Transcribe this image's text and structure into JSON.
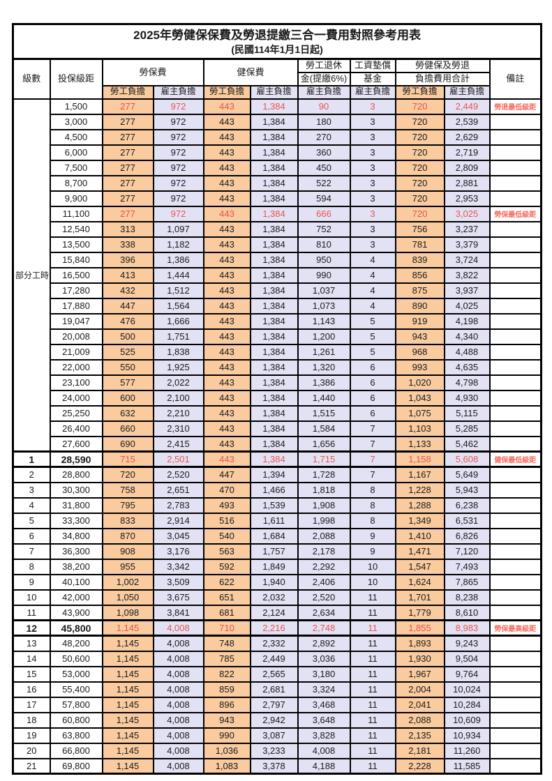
{
  "title": "2025年勞健保保費及勞退提繳三合一費用對照參考用表",
  "subtitle": "(民國114年1月1日起)",
  "columns": {
    "level": "級數",
    "bracket": "投保級距",
    "labor_insurance": "勞保費",
    "health_insurance": "健保費",
    "pension_line1": "勞工退休",
    "pension_line2": "金(提繳6%)",
    "wage_fund_line1": "工資墊償",
    "wage_fund_line2": "基金",
    "total_line1": "勞健保及勞退",
    "total_line2": "負擔費用合計",
    "remark": "備註",
    "employee": "勞工負擔",
    "employer": "雇主負擔"
  },
  "part_time": {
    "label": "部分工時",
    "span": 23
  },
  "colors": {
    "employee_bg": "#F9CB9F",
    "employer_bg": "#E3E2F4",
    "highlight_red": "#E8544C",
    "remark_red": "#F96A60",
    "border": "#000000"
  },
  "rows": [
    {
      "level": null,
      "salary": "1,500",
      "values": [
        "277",
        "972",
        "443",
        "1,384",
        "90",
        "3",
        "720",
        "2,449"
      ],
      "remark": "勞退最低級距",
      "red": true,
      "bold": false,
      "heavy": false
    },
    {
      "level": null,
      "salary": "3,000",
      "values": [
        "277",
        "972",
        "443",
        "1,384",
        "180",
        "3",
        "720",
        "2,539"
      ],
      "remark": "",
      "red": false,
      "bold": false,
      "heavy": false
    },
    {
      "level": null,
      "salary": "4,500",
      "values": [
        "277",
        "972",
        "443",
        "1,384",
        "270",
        "3",
        "720",
        "2,629"
      ],
      "remark": "",
      "red": false,
      "bold": false,
      "heavy": false
    },
    {
      "level": null,
      "salary": "6,000",
      "values": [
        "277",
        "972",
        "443",
        "1,384",
        "360",
        "3",
        "720",
        "2,719"
      ],
      "remark": "",
      "red": false,
      "bold": false,
      "heavy": false
    },
    {
      "level": null,
      "salary": "7,500",
      "values": [
        "277",
        "972",
        "443",
        "1,384",
        "450",
        "3",
        "720",
        "2,809"
      ],
      "remark": "",
      "red": false,
      "bold": false,
      "heavy": false
    },
    {
      "level": null,
      "salary": "8,700",
      "values": [
        "277",
        "972",
        "443",
        "1,384",
        "522",
        "3",
        "720",
        "2,881"
      ],
      "remark": "",
      "red": false,
      "bold": false,
      "heavy": false
    },
    {
      "level": null,
      "salary": "9,900",
      "values": [
        "277",
        "972",
        "443",
        "1,384",
        "594",
        "3",
        "720",
        "2,953"
      ],
      "remark": "",
      "red": false,
      "bold": false,
      "heavy": false
    },
    {
      "level": null,
      "salary": "11,100",
      "values": [
        "277",
        "972",
        "443",
        "1,384",
        "666",
        "3",
        "720",
        "3,025"
      ],
      "remark": "勞保最低級距",
      "red": true,
      "bold": false,
      "heavy": false
    },
    {
      "level": null,
      "salary": "12,540",
      "values": [
        "313",
        "1,097",
        "443",
        "1,384",
        "752",
        "3",
        "756",
        "3,237"
      ],
      "remark": "",
      "red": false,
      "bold": false,
      "heavy": false
    },
    {
      "level": null,
      "salary": "13,500",
      "values": [
        "338",
        "1,182",
        "443",
        "1,384",
        "810",
        "3",
        "781",
        "3,379"
      ],
      "remark": "",
      "red": false,
      "bold": false,
      "heavy": false
    },
    {
      "level": null,
      "salary": "15,840",
      "values": [
        "396",
        "1,386",
        "443",
        "1,384",
        "950",
        "4",
        "839",
        "3,724"
      ],
      "remark": "",
      "red": false,
      "bold": false,
      "heavy": false
    },
    {
      "level": null,
      "salary": "16,500",
      "values": [
        "413",
        "1,444",
        "443",
        "1,384",
        "990",
        "4",
        "856",
        "3,822"
      ],
      "remark": "",
      "red": false,
      "bold": false,
      "heavy": false
    },
    {
      "level": null,
      "salary": "17,280",
      "values": [
        "432",
        "1,512",
        "443",
        "1,384",
        "1,037",
        "4",
        "875",
        "3,937"
      ],
      "remark": "",
      "red": false,
      "bold": false,
      "heavy": false
    },
    {
      "level": null,
      "salary": "17,880",
      "values": [
        "447",
        "1,564",
        "443",
        "1,384",
        "1,073",
        "4",
        "890",
        "4,025"
      ],
      "remark": "",
      "red": false,
      "bold": false,
      "heavy": false
    },
    {
      "level": null,
      "salary": "19,047",
      "values": [
        "476",
        "1,666",
        "443",
        "1,384",
        "1,143",
        "5",
        "919",
        "4,198"
      ],
      "remark": "",
      "red": false,
      "bold": false,
      "heavy": false
    },
    {
      "level": null,
      "salary": "20,008",
      "values": [
        "500",
        "1,751",
        "443",
        "1,384",
        "1,200",
        "5",
        "943",
        "4,340"
      ],
      "remark": "",
      "red": false,
      "bold": false,
      "heavy": false
    },
    {
      "level": null,
      "salary": "21,009",
      "values": [
        "525",
        "1,838",
        "443",
        "1,384",
        "1,261",
        "5",
        "968",
        "4,488"
      ],
      "remark": "",
      "red": false,
      "bold": false,
      "heavy": false
    },
    {
      "level": null,
      "salary": "22,000",
      "values": [
        "550",
        "1,925",
        "443",
        "1,384",
        "1,320",
        "6",
        "993",
        "4,635"
      ],
      "remark": "",
      "red": false,
      "bold": false,
      "heavy": false
    },
    {
      "level": null,
      "salary": "23,100",
      "values": [
        "577",
        "2,022",
        "443",
        "1,384",
        "1,386",
        "6",
        "1,020",
        "4,798"
      ],
      "remark": "",
      "red": false,
      "bold": false,
      "heavy": false
    },
    {
      "level": null,
      "salary": "24,000",
      "values": [
        "600",
        "2,100",
        "443",
        "1,384",
        "1,440",
        "6",
        "1,043",
        "4,930"
      ],
      "remark": "",
      "red": false,
      "bold": false,
      "heavy": false
    },
    {
      "level": null,
      "salary": "25,250",
      "values": [
        "632",
        "2,210",
        "443",
        "1,384",
        "1,515",
        "6",
        "1,075",
        "5,115"
      ],
      "remark": "",
      "red": false,
      "bold": false,
      "heavy": false
    },
    {
      "level": null,
      "salary": "26,400",
      "values": [
        "660",
        "2,310",
        "443",
        "1,384",
        "1,584",
        "7",
        "1,103",
        "5,285"
      ],
      "remark": "",
      "red": false,
      "bold": false,
      "heavy": false
    },
    {
      "level": null,
      "salary": "27,600",
      "values": [
        "690",
        "2,415",
        "443",
        "1,384",
        "1,656",
        "7",
        "1,133",
        "5,462"
      ],
      "remark": "",
      "red": false,
      "bold": false,
      "heavy": false
    },
    {
      "level": "1",
      "salary": "28,590",
      "values": [
        "715",
        "2,501",
        "443",
        "1,384",
        "1,715",
        "7",
        "1,158",
        "5,608"
      ],
      "remark": "健保最低級距",
      "red": true,
      "bold": true,
      "heavy": true
    },
    {
      "level": "2",
      "salary": "28,800",
      "values": [
        "720",
        "2,520",
        "447",
        "1,394",
        "1,728",
        "7",
        "1,167",
        "5,649"
      ],
      "remark": "",
      "red": false,
      "bold": false,
      "heavy": false
    },
    {
      "level": "3",
      "salary": "30,300",
      "values": [
        "758",
        "2,651",
        "470",
        "1,466",
        "1,818",
        "8",
        "1,228",
        "5,943"
      ],
      "remark": "",
      "red": false,
      "bold": false,
      "heavy": false
    },
    {
      "level": "4",
      "salary": "31,800",
      "values": [
        "795",
        "2,783",
        "493",
        "1,539",
        "1,908",
        "8",
        "1,288",
        "6,238"
      ],
      "remark": "",
      "red": false,
      "bold": false,
      "heavy": false
    },
    {
      "level": "5",
      "salary": "33,300",
      "values": [
        "833",
        "2,914",
        "516",
        "1,611",
        "1,998",
        "8",
        "1,349",
        "6,531"
      ],
      "remark": "",
      "red": false,
      "bold": false,
      "heavy": false
    },
    {
      "level": "6",
      "salary": "34,800",
      "values": [
        "870",
        "3,045",
        "540",
        "1,684",
        "2,088",
        "9",
        "1,410",
        "6,826"
      ],
      "remark": "",
      "red": false,
      "bold": false,
      "heavy": false
    },
    {
      "level": "7",
      "salary": "36,300",
      "values": [
        "908",
        "3,176",
        "563",
        "1,757",
        "2,178",
        "9",
        "1,471",
        "7,120"
      ],
      "remark": "",
      "red": false,
      "bold": false,
      "heavy": false
    },
    {
      "level": "8",
      "salary": "38,200",
      "values": [
        "955",
        "3,342",
        "592",
        "1,849",
        "2,292",
        "10",
        "1,547",
        "7,493"
      ],
      "remark": "",
      "red": false,
      "bold": false,
      "heavy": false
    },
    {
      "level": "9",
      "salary": "40,100",
      "values": [
        "1,002",
        "3,509",
        "622",
        "1,940",
        "2,406",
        "10",
        "1,624",
        "7,865"
      ],
      "remark": "",
      "red": false,
      "bold": false,
      "heavy": false
    },
    {
      "level": "10",
      "salary": "42,000",
      "values": [
        "1,050",
        "3,675",
        "651",
        "2,032",
        "2,520",
        "11",
        "1,701",
        "8,238"
      ],
      "remark": "",
      "red": false,
      "bold": false,
      "heavy": false
    },
    {
      "level": "11",
      "salary": "43,900",
      "values": [
        "1,098",
        "3,841",
        "681",
        "2,124",
        "2,634",
        "11",
        "1,779",
        "8,610"
      ],
      "remark": "",
      "red": false,
      "bold": false,
      "heavy": false
    },
    {
      "level": "12",
      "salary": "45,800",
      "values": [
        "1,145",
        "4,008",
        "710",
        "2,216",
        "2,748",
        "11",
        "1,855",
        "8,983"
      ],
      "remark": "勞保最高級距",
      "red": true,
      "bold": true,
      "heavy": true
    },
    {
      "level": "13",
      "salary": "48,200",
      "values": [
        "1,145",
        "4,008",
        "748",
        "2,332",
        "2,892",
        "11",
        "1,893",
        "9,243"
      ],
      "remark": "",
      "red": false,
      "bold": false,
      "heavy": false
    },
    {
      "level": "14",
      "salary": "50,600",
      "values": [
        "1,145",
        "4,008",
        "785",
        "2,449",
        "3,036",
        "11",
        "1,930",
        "9,504"
      ],
      "remark": "",
      "red": false,
      "bold": false,
      "heavy": false
    },
    {
      "level": "15",
      "salary": "53,000",
      "values": [
        "1,145",
        "4,008",
        "822",
        "2,565",
        "3,180",
        "11",
        "1,967",
        "9,764"
      ],
      "remark": "",
      "red": false,
      "bold": false,
      "heavy": false
    },
    {
      "level": "16",
      "salary": "55,400",
      "values": [
        "1,145",
        "4,008",
        "859",
        "2,681",
        "3,324",
        "11",
        "2,004",
        "10,024"
      ],
      "remark": "",
      "red": false,
      "bold": false,
      "heavy": false
    },
    {
      "level": "17",
      "salary": "57,800",
      "values": [
        "1,145",
        "4,008",
        "896",
        "2,797",
        "3,468",
        "11",
        "2,041",
        "10,284"
      ],
      "remark": "",
      "red": false,
      "bold": false,
      "heavy": false
    },
    {
      "level": "18",
      "salary": "60,800",
      "values": [
        "1,145",
        "4,008",
        "943",
        "2,942",
        "3,648",
        "11",
        "2,088",
        "10,609"
      ],
      "remark": "",
      "red": false,
      "bold": false,
      "heavy": false
    },
    {
      "level": "19",
      "salary": "63,800",
      "values": [
        "1,145",
        "4,008",
        "990",
        "3,087",
        "3,828",
        "11",
        "2,135",
        "10,934"
      ],
      "remark": "",
      "red": false,
      "bold": false,
      "heavy": false
    },
    {
      "level": "20",
      "salary": "66,800",
      "values": [
        "1,145",
        "4,008",
        "1,036",
        "3,233",
        "4,008",
        "11",
        "2,181",
        "11,260"
      ],
      "remark": "",
      "red": false,
      "bold": false,
      "heavy": false
    },
    {
      "level": "21",
      "salary": "69,800",
      "values": [
        "1,145",
        "4,008",
        "1,083",
        "3,378",
        "4,188",
        "11",
        "2,228",
        "11,585"
      ],
      "remark": "",
      "red": false,
      "bold": false,
      "heavy": false
    }
  ]
}
